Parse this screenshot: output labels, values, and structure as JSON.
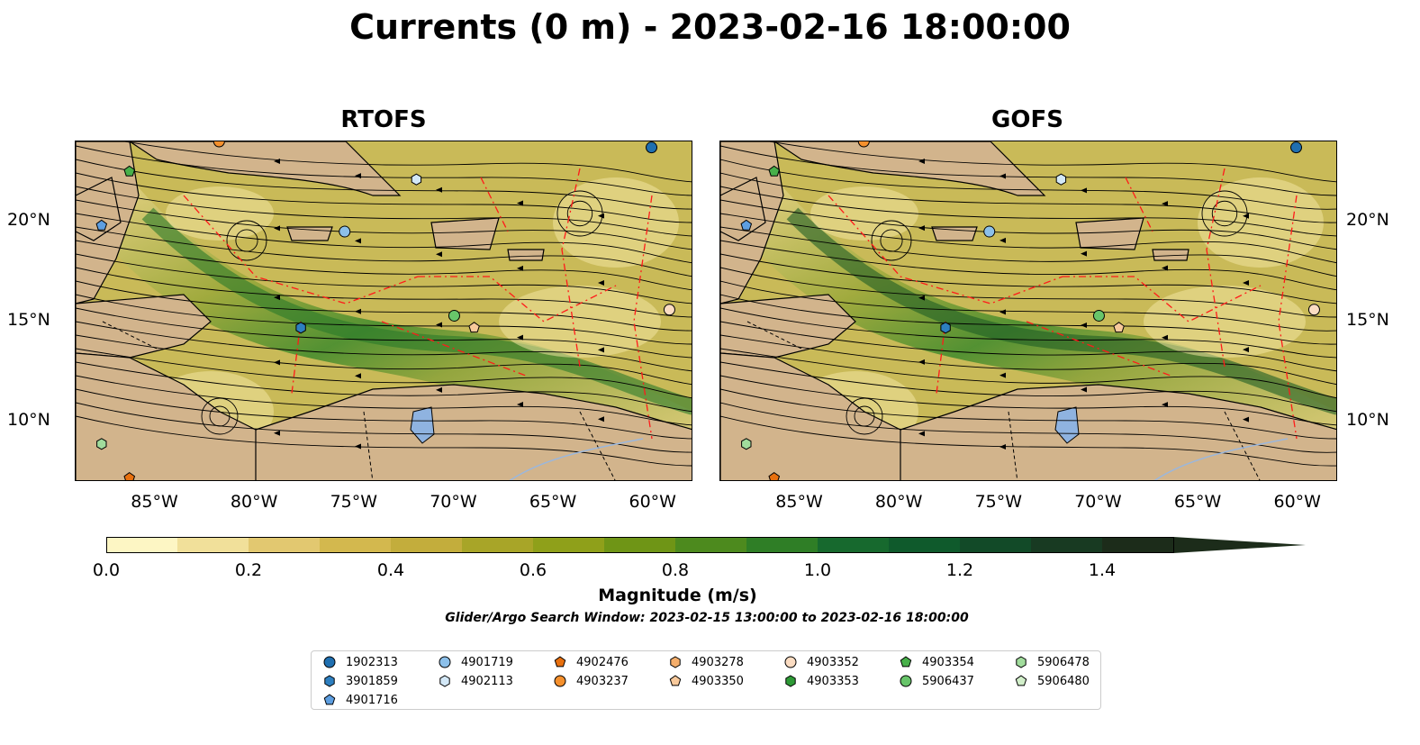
{
  "title": "Currents (0 m) - 2023-02-16 18:00:00",
  "panels": [
    {
      "title": "RTOFS"
    },
    {
      "title": "GOFS"
    }
  ],
  "x_ticks": [
    "85°W",
    "80°W",
    "75°W",
    "70°W",
    "65°W",
    "60°W"
  ],
  "y_ticks": [
    "20°N",
    "15°N",
    "10°N"
  ],
  "colorbar": {
    "label": "Magnitude (m/s)",
    "ticks": [
      "0.0",
      "0.2",
      "0.4",
      "0.6",
      "0.8",
      "1.0",
      "1.2",
      "1.4"
    ],
    "min": 0.0,
    "max": 1.5,
    "extend": "max",
    "colors": [
      "#fdf6c4",
      "#f1e09a",
      "#e2c870",
      "#d3b84e",
      "#c3ad3c",
      "#a8a528",
      "#8fa01a",
      "#6f9516",
      "#4d8a1e",
      "#2f7e26",
      "#17692e",
      "#0f5a2c",
      "#124a28",
      "#183a22",
      "#1c2c1a"
    ]
  },
  "search_window": "Glider/Argo Search Window: 2023-02-15 13:00:00 to 2023-02-16 18:00:00",
  "legend": [
    {
      "label": "1902313",
      "marker": "circle",
      "color": "#1f6fb0"
    },
    {
      "label": "3901859",
      "marker": "hexagon",
      "color": "#2d7fc0"
    },
    {
      "label": "4901716",
      "marker": "pentagon",
      "color": "#5d9ee0"
    },
    {
      "label": "4901719",
      "marker": "circle",
      "color": "#8cc0ea"
    },
    {
      "label": "4902113",
      "marker": "hexagon",
      "color": "#d3e8f7"
    },
    {
      "label": "4902476",
      "marker": "pentagon",
      "color": "#e8700e"
    },
    {
      "label": "4903237",
      "marker": "circle",
      "color": "#f5902d"
    },
    {
      "label": "4903278",
      "marker": "hexagon",
      "color": "#f5ae6b"
    },
    {
      "label": "4903350",
      "marker": "pentagon",
      "color": "#f8c99b"
    },
    {
      "label": "4903352",
      "marker": "circle",
      "color": "#fbdcc2"
    },
    {
      "label": "4903353",
      "marker": "hexagon",
      "color": "#2e9a36"
    },
    {
      "label": "4903354",
      "marker": "pentagon",
      "color": "#48b04a"
    },
    {
      "label": "5906437",
      "marker": "circle",
      "color": "#68c56a"
    },
    {
      "label": "5906478",
      "marker": "hexagon",
      "color": "#a1dc9c"
    },
    {
      "label": "5906480",
      "marker": "pentagon",
      "color": "#d2efca"
    }
  ],
  "map_extent": {
    "lon": [
      -89.0,
      -58.0
    ],
    "lat": [
      7.0,
      24.0
    ]
  },
  "floats": [
    {
      "id": "1902313",
      "lon": -60.1,
      "lat": 23.7
    },
    {
      "id": "4901716",
      "lon": -87.7,
      "lat": 19.8
    },
    {
      "id": "4901719",
      "lon": -75.5,
      "lat": 19.5
    },
    {
      "id": "4902113",
      "lon": -71.9,
      "lat": 22.1
    },
    {
      "id": "3901859",
      "lon": -77.7,
      "lat": 14.7
    },
    {
      "id": "5906437",
      "lon": -70.0,
      "lat": 15.3
    },
    {
      "id": "4903350",
      "lon": -69.0,
      "lat": 14.7
    },
    {
      "id": "4903352",
      "lon": -59.2,
      "lat": 15.6
    },
    {
      "id": "4903354",
      "lon": -86.3,
      "lat": 22.5
    },
    {
      "id": "5906478",
      "lon": -87.7,
      "lat": 8.9
    },
    {
      "id": "4902476",
      "lon": -86.3,
      "lat": 7.2
    },
    {
      "id": "4903237",
      "lon": -81.8,
      "lat": 24.0
    }
  ]
}
